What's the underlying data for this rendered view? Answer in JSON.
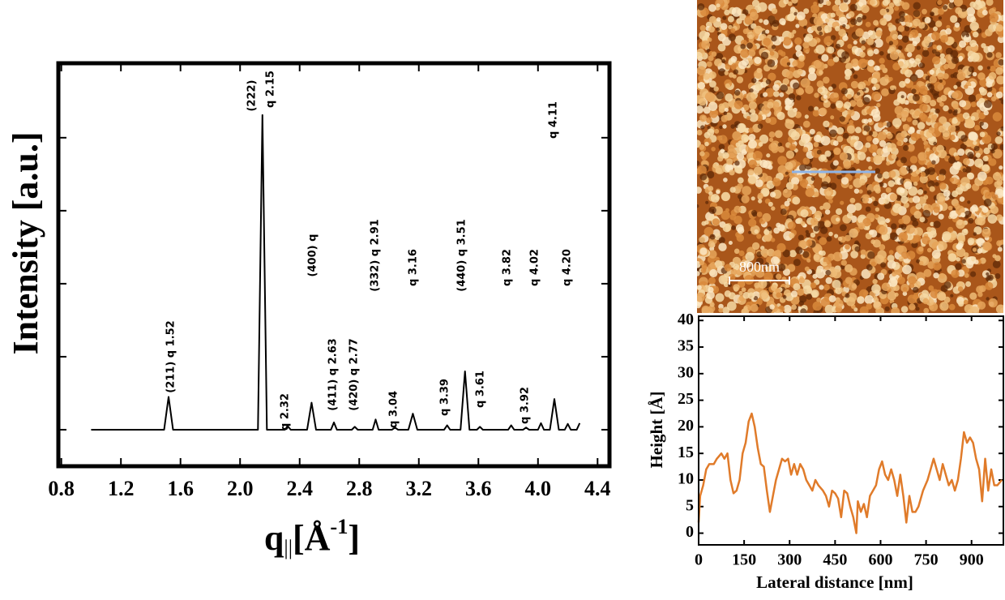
{
  "chart_data": [
    {
      "type": "line",
      "color": "#000000",
      "y_label": "Intensity [a.u.]",
      "x_label": {
        "base": "q",
        "sub": "||",
        "mid": "[Å",
        "sup": "-1",
        "end": "]"
      },
      "x": [
        1.0,
        1.49,
        1.52,
        1.55,
        2.12,
        2.15,
        2.18,
        2.3,
        2.32,
        2.34,
        2.45,
        2.48,
        2.51,
        2.61,
        2.63,
        2.65,
        2.75,
        2.77,
        2.79,
        2.89,
        2.91,
        2.93,
        3.02,
        3.04,
        3.06,
        3.13,
        3.16,
        3.19,
        3.37,
        3.39,
        3.41,
        3.48,
        3.51,
        3.54,
        3.59,
        3.61,
        3.63,
        3.8,
        3.82,
        3.84,
        3.9,
        3.92,
        3.94,
        4.0,
        4.02,
        4.04,
        4.08,
        4.11,
        4.14,
        4.18,
        4.2,
        4.22,
        4.26,
        4.28
      ],
      "values": [
        0,
        0,
        0.45,
        0,
        0,
        4.31,
        0,
        0,
        0.05,
        0,
        0,
        0.37,
        0,
        0,
        0.1,
        0,
        0,
        0.04,
        0,
        0,
        0.14,
        0,
        0,
        0.03,
        0,
        0,
        0.22,
        0,
        0,
        0.06,
        0,
        0,
        0.8,
        0,
        0,
        0.04,
        0,
        0,
        0.06,
        0,
        0,
        0.03,
        0,
        0,
        0.09,
        0,
        0,
        0.42,
        0,
        0,
        0.08,
        0,
        0,
        0.09
      ],
      "xlim": [
        0.78,
        4.48
      ],
      "xticks": [
        0.8,
        1.2,
        1.6,
        {
          "value": 2,
          "label": "2.0"
        },
        2.4,
        2.8,
        3.2,
        3.6,
        {
          "value": 4,
          "label": "4.0"
        },
        4.4
      ],
      "ylim": [
        -0.5,
        5.02
      ],
      "yticks": [
        0,
        1,
        2,
        3,
        4
      ],
      "annotations": [
        "(211) q 1.52",
        "(222)",
        "q 2.15",
        "q 2.32",
        "(400) q",
        "(411) q 2.63",
        "(420) q 2.77",
        "(332) q 2.91",
        "q 3.04",
        "q 3.16",
        "q 3.39",
        "(440) q 3.51",
        "q 3.61",
        "q 3.82",
        "q 3.92",
        "q 4.02",
        "q 4.11",
        "q 4.20"
      ]
    },
    {
      "type": "image",
      "scale_bar_label": "800nm"
    },
    {
      "type": "line",
      "color": "#e07b2a",
      "x_label": "Lateral distance [nm]",
      "y_label": "Height [Å]",
      "x": [
        0,
        5,
        15,
        25,
        35,
        50,
        60,
        75,
        85,
        95,
        105,
        115,
        125,
        135,
        145,
        155,
        165,
        175,
        185,
        195,
        205,
        215,
        225,
        235,
        245,
        255,
        265,
        275,
        285,
        295,
        305,
        315,
        325,
        335,
        345,
        355,
        365,
        375,
        385,
        395,
        410,
        420,
        430,
        440,
        450,
        460,
        470,
        480,
        490,
        500,
        510,
        520,
        525,
        535,
        545,
        555,
        565,
        575,
        585,
        595,
        605,
        615,
        625,
        635,
        645,
        655,
        665,
        675,
        685,
        695,
        705,
        715,
        725,
        740,
        755,
        765,
        775,
        785,
        795,
        805,
        815,
        825,
        835,
        845,
        855,
        865,
        875,
        885,
        895,
        905,
        915,
        925,
        935,
        945,
        955,
        965,
        975,
        985,
        1000
      ],
      "values": [
        2,
        7,
        9,
        12,
        13,
        13,
        14,
        15,
        14,
        15,
        10,
        7.5,
        8,
        10,
        15,
        17,
        21,
        22.5,
        20,
        16,
        13,
        12.5,
        8,
        4,
        7,
        10,
        12,
        14,
        13.5,
        14,
        11,
        13,
        11,
        13,
        12,
        10,
        9,
        8,
        10,
        9,
        8,
        7,
        5,
        8,
        7.5,
        6.5,
        3,
        8,
        7.5,
        5,
        3,
        0,
        6,
        4,
        5.5,
        3,
        7,
        8,
        9,
        12,
        13.5,
        11,
        10,
        12,
        10,
        7,
        11,
        7,
        2,
        7,
        4,
        4,
        5,
        8,
        10,
        12,
        14,
        12,
        10,
        13,
        11,
        9,
        10,
        8,
        10,
        14,
        19,
        17,
        18,
        17,
        14,
        12,
        6,
        14,
        8,
        12,
        9,
        9,
        10
      ],
      "xlim": [
        0,
        1005
      ],
      "xticks": [
        0,
        150,
        300,
        450,
        600,
        750,
        900
      ],
      "ylim": [
        -2.2,
        40.8
      ],
      "yticks": [
        0,
        5,
        10,
        15,
        20,
        25,
        30,
        35,
        40
      ]
    }
  ]
}
